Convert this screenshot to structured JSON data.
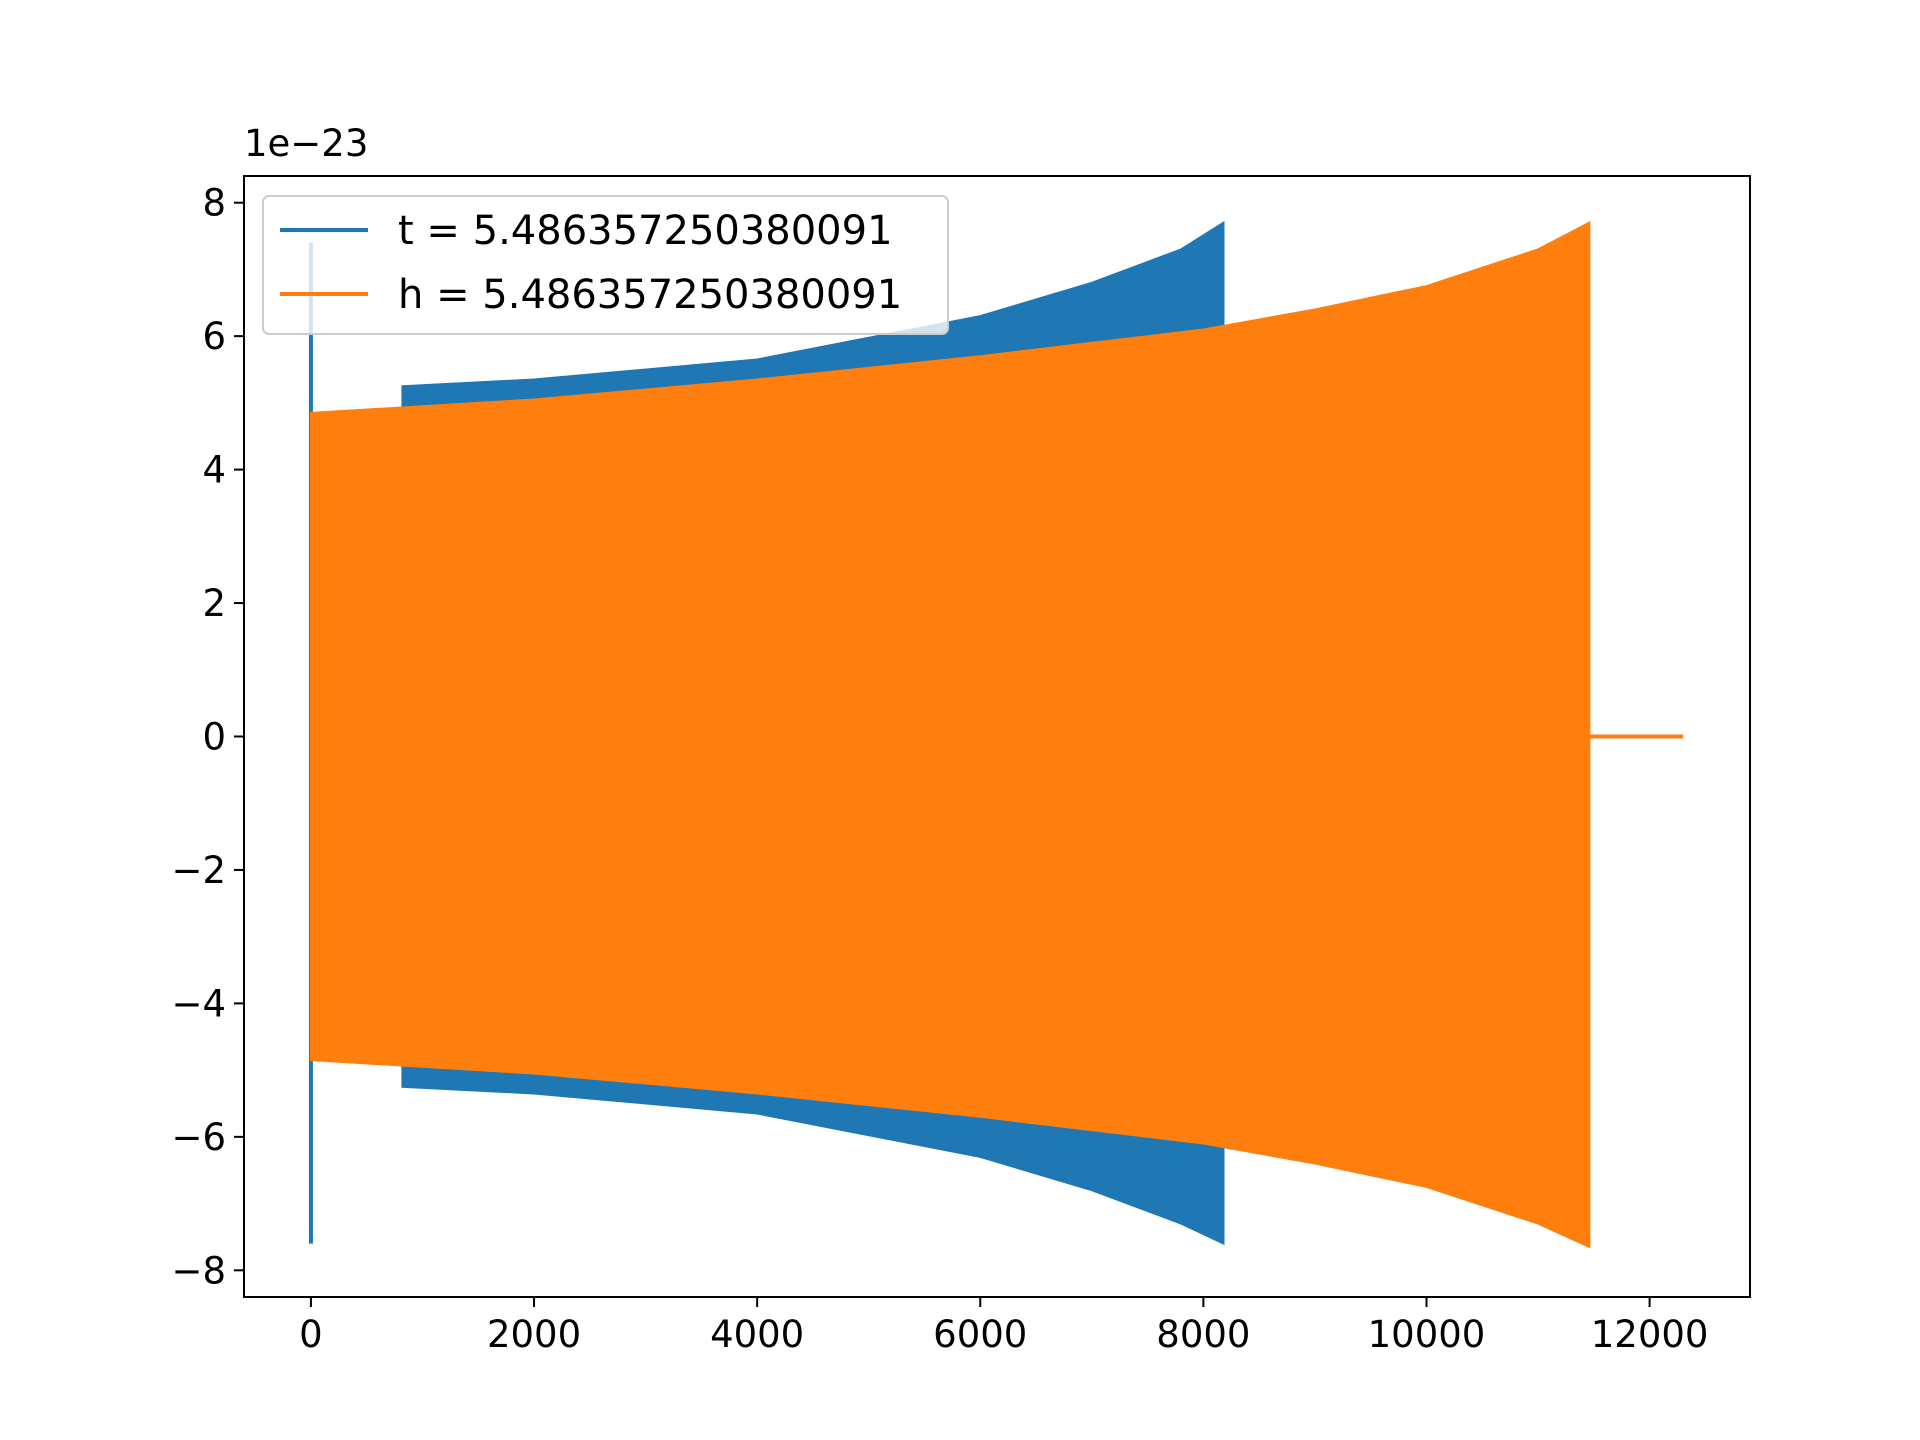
{
  "chart_data": {
    "type": "line",
    "title": "",
    "xlabel": "",
    "ylabel": "",
    "xlim": [
      -600,
      12900
    ],
    "ylim": [
      -8.4,
      8.4
    ],
    "y_offset_label": "1e−23",
    "x_ticks": [
      0,
      2000,
      4000,
      6000,
      8000,
      10000,
      12000
    ],
    "x_tick_labels": [
      "0",
      "2000",
      "4000",
      "6000",
      "8000",
      "10000",
      "12000"
    ],
    "y_ticks": [
      -8,
      -6,
      -4,
      -2,
      0,
      2,
      4,
      6,
      8
    ],
    "y_tick_labels": [
      "−8",
      "−6",
      "−4",
      "−2",
      "0",
      "2",
      "4",
      "6",
      "8"
    ],
    "grid": false,
    "legend": "upper left",
    "series": [
      {
        "name": "t = 5.486357250380091",
        "color": "#1f77b4",
        "spike": {
          "x": 0,
          "y_max": 7.4,
          "y_min": -7.6
        },
        "envelope_start_x": 820,
        "envelope_end_x": 8180,
        "envelope_upper": [
          [
            820,
            5.25
          ],
          [
            2000,
            5.35
          ],
          [
            4000,
            5.65
          ],
          [
            6000,
            6.3
          ],
          [
            7000,
            6.8
          ],
          [
            7800,
            7.3
          ],
          [
            8180,
            7.7
          ]
        ],
        "envelope_lower": [
          [
            820,
            -5.25
          ],
          [
            2000,
            -5.35
          ],
          [
            4000,
            -5.65
          ],
          [
            6000,
            -6.3
          ],
          [
            7000,
            -6.8
          ],
          [
            7800,
            -7.3
          ],
          [
            8180,
            -7.6
          ]
        ]
      },
      {
        "name": "h = 5.486357250380091",
        "color": "#ff7f0e",
        "envelope_start_x": 0,
        "envelope_end_x": 11460,
        "envelope_upper": [
          [
            0,
            4.85
          ],
          [
            2000,
            5.05
          ],
          [
            4000,
            5.35
          ],
          [
            6000,
            5.7
          ],
          [
            8000,
            6.1
          ],
          [
            9000,
            6.4
          ],
          [
            10000,
            6.75
          ],
          [
            11000,
            7.3
          ],
          [
            11460,
            7.7
          ]
        ],
        "envelope_lower": [
          [
            0,
            -4.85
          ],
          [
            2000,
            -5.05
          ],
          [
            4000,
            -5.35
          ],
          [
            6000,
            -5.7
          ],
          [
            8000,
            -6.1
          ],
          [
            9000,
            -6.4
          ],
          [
            10000,
            -6.75
          ],
          [
            11000,
            -7.3
          ],
          [
            11460,
            -7.65
          ]
        ],
        "tail": {
          "x_start": 11460,
          "x_end": 12300,
          "y": 0
        }
      }
    ]
  }
}
